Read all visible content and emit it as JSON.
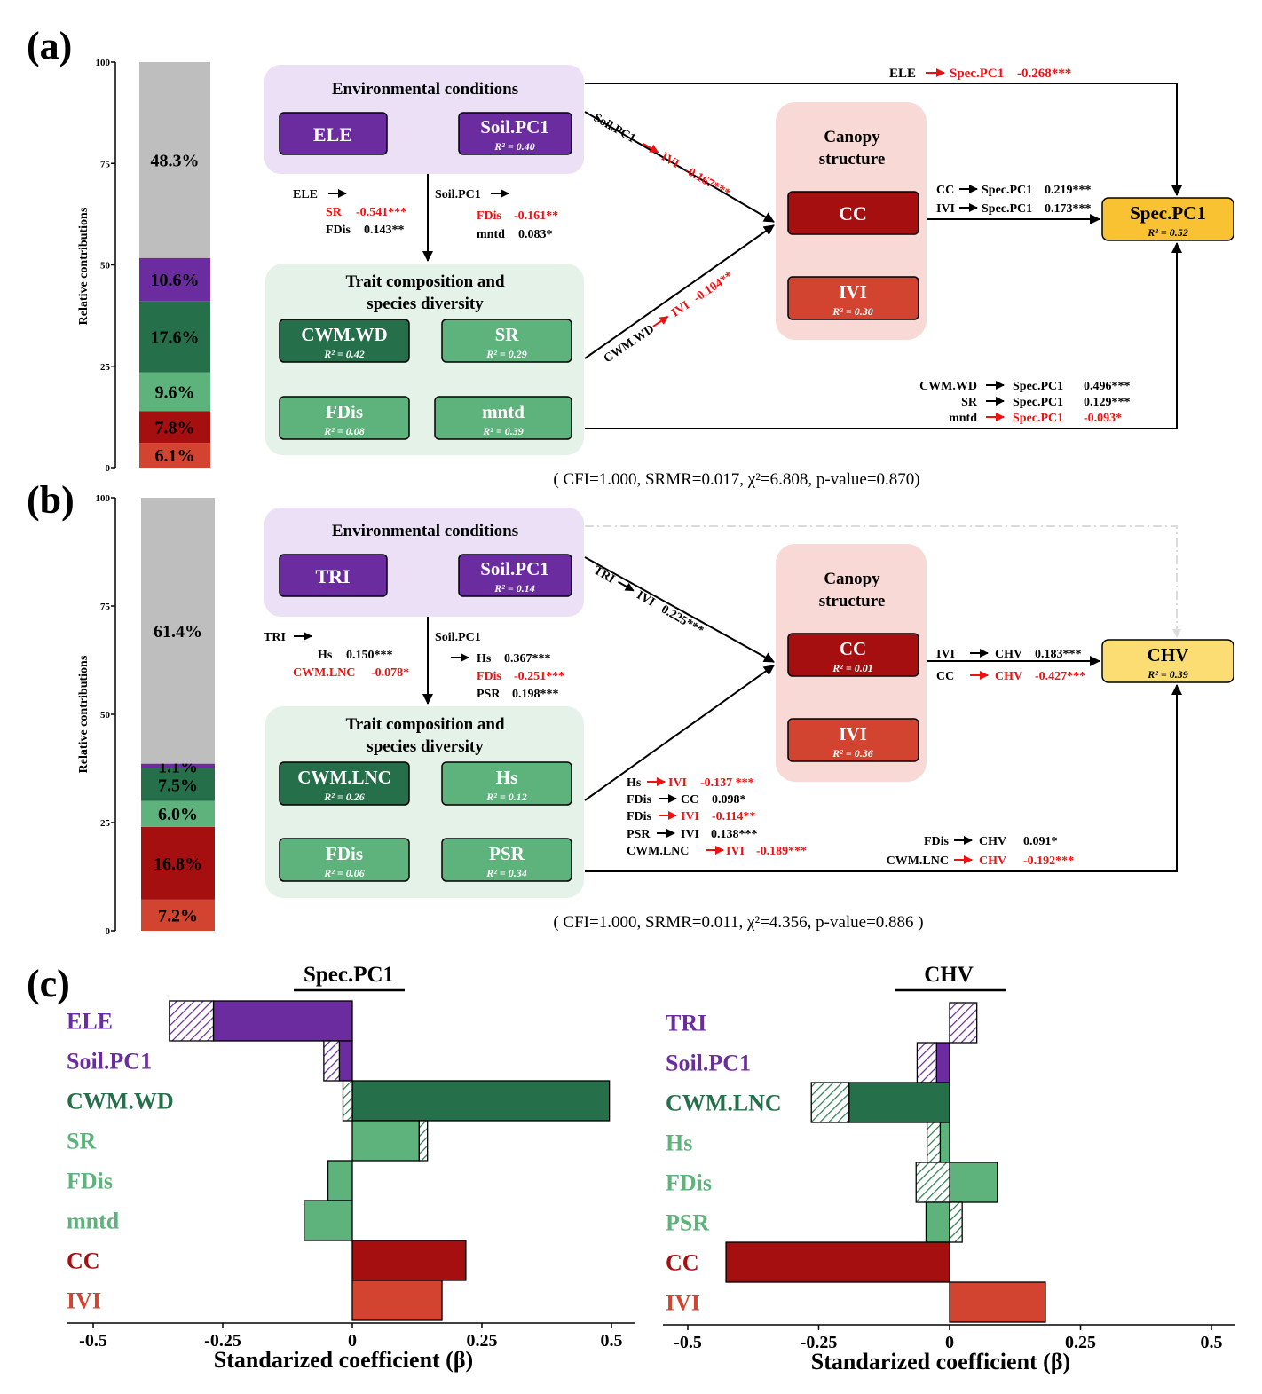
{
  "colors": {
    "env_purple": "#6a2c9e",
    "env_bg": "#ece0f7",
    "trait_dark": "#25704a",
    "trait_light": "#5eb37c",
    "trait_bg": "#e5f2e7",
    "cc_red": "#a50f10",
    "ivi_red": "#d24430",
    "canopy_bg": "#f8d9d6",
    "spec_yellow": "#f8c232",
    "chv_yellow": "#fbdd73",
    "gray": "#bebebe",
    "highlight_red": "#ee1111"
  },
  "panel_a": {
    "label": "(a)",
    "bar": {
      "ylabel": "Relative contributions",
      "ticks": [
        "0",
        "25",
        "50",
        "75",
        "100"
      ],
      "segments": [
        {
          "value": 6.1,
          "label": "6.1%",
          "color": "#d24430"
        },
        {
          "value": 7.8,
          "label": "7.8%",
          "color": "#a50f10"
        },
        {
          "value": 9.6,
          "label": "9.6%",
          "color": "#5eb37c"
        },
        {
          "value": 17.6,
          "label": "17.6%",
          "color": "#25704a"
        },
        {
          "value": 10.6,
          "label": "10.6%",
          "color": "#6a2c9e"
        },
        {
          "value": 48.3,
          "label": "48.3%",
          "color": "#bebebe"
        }
      ]
    },
    "env": {
      "title": "Environmental conditions",
      "ele": "ELE",
      "soil": "Soil.PC1",
      "soil_r2": "R² = 0.40"
    },
    "trait": {
      "title1": "Trait composition and",
      "title2": "species diversity",
      "cwm": "CWM.WD",
      "cwm_r2": "R² = 0.42",
      "sr": "SR",
      "sr_r2": "R² = 0.29",
      "fdis": "FDis",
      "fdis_r2": "R² = 0.08",
      "mntd": "mntd",
      "mntd_r2": "R² = 0.39"
    },
    "canopy": {
      "title1": "Canopy",
      "title2": "structure",
      "cc": "CC",
      "ivi": "IVI",
      "ivi_r2": "R² = 0.30"
    },
    "target": {
      "name": "Spec.PC1",
      "r2": "R² = 0.52"
    },
    "paths": {
      "ele_top_src": "ELE",
      "ele_top_dst": "Spec.PC1",
      "ele_top_val": "-0.268***",
      "soil_ivi": "Soil.PC1",
      "soil_ivi_dst": "IVI",
      "soil_ivi_val": "-0.167***",
      "cwm_ivi": "CWM.WD",
      "cwm_ivi_dst": "IVI",
      "cwm_ivi_val": "-0.104**",
      "ele_mid_src": "ELE",
      "ele_sr": "SR",
      "ele_sr_val": "-0.541***",
      "ele_fdis": "FDis",
      "ele_fdis_val": "0.143**",
      "soil_mid_src": "Soil.PC1",
      "soil_fdis": "FDis",
      "soil_fdis_val": "-0.161**",
      "soil_mntd": "mntd",
      "soil_mntd_val": "0.083*",
      "cc_spec": "CC",
      "cc_spec_dst": "Spec.PC1",
      "cc_spec_val": "0.219***",
      "ivi_spec": "IVI",
      "ivi_spec_dst": "Spec.PC1",
      "ivi_spec_val": "0.173***",
      "cwm_spec": "CWM.WD",
      "cwm_spec_dst": "Spec.PC1",
      "cwm_spec_val": "0.496***",
      "sr_spec": "SR",
      "sr_spec_dst": "Spec.PC1",
      "sr_spec_val": "0.129***",
      "mntd_spec": "mntd",
      "mntd_spec_dst": "Spec.PC1",
      "mntd_spec_val": "-0.093*"
    },
    "fit": "( CFI=1.000, SRMR=0.017, χ²=6.808, p-value=0.870)"
  },
  "panel_b": {
    "label": "(b)",
    "bar": {
      "ylabel": "Relative contributions",
      "ticks": [
        "0",
        "25",
        "50",
        "75",
        "100"
      ],
      "segments": [
        {
          "value": 7.2,
          "label": "7.2%",
          "color": "#d24430"
        },
        {
          "value": 16.8,
          "label": "16.8%",
          "color": "#a50f10"
        },
        {
          "value": 6.0,
          "label": "6.0%",
          "color": "#5eb37c"
        },
        {
          "value": 7.5,
          "label": "7.5%",
          "color": "#25704a"
        },
        {
          "value": 1.1,
          "label": "1.1%",
          "color": "#6a2c9e"
        },
        {
          "value": 61.4,
          "label": "61.4%",
          "color": "#bebebe"
        }
      ]
    },
    "env": {
      "title": "Environmental conditions",
      "tri": "TRI",
      "soil": "Soil.PC1",
      "soil_r2": "R² = 0.14"
    },
    "trait": {
      "title1": "Trait composition and",
      "title2": "species diversity",
      "cwm": "CWM.LNC",
      "cwm_r2": "R² = 0.26",
      "hs": "Hs",
      "hs_r2": "R² = 0.12",
      "fdis": "FDis",
      "fdis_r2": "R² = 0.06",
      "psr": "PSR",
      "psr_r2": "R² = 0.34"
    },
    "canopy": {
      "title1": "Canopy",
      "title2": "structure",
      "cc": "CC",
      "cc_r2": "R² = 0.01",
      "ivi": "IVI",
      "ivi_r2": "R² = 0.36"
    },
    "target": {
      "name": "CHV",
      "r2": "R² = 0.39"
    },
    "paths": {
      "tri_ivi": "TRI",
      "tri_ivi_dst": "IVI",
      "tri_ivi_val": "0.225***",
      "tri_mid_src": "TRI",
      "tri_hs": "Hs",
      "tri_hs_val": "0.150***",
      "tri_cwm": "CWM.LNC",
      "tri_cwm_val": "-0.078*",
      "soil_mid_src": "Soil.PC1",
      "soil_hs": "Hs",
      "soil_hs_val": "0.367***",
      "soil_fdis": "FDis",
      "soil_fdis_val": "-0.251***",
      "soil_psr": "PSR",
      "soil_psr_val": "0.198***",
      "ivi_chv": "IVI",
      "ivi_chv_dst": "CHV",
      "ivi_chv_val": "0.183***",
      "cc_chv": "CC",
      "cc_chv_dst": "CHV",
      "cc_chv_val": "-0.427***",
      "l1_src": "Hs",
      "l1_dst": "IVI",
      "l1_val": "-0.137 ***",
      "l2_src": "FDis",
      "l2_dst": "CC",
      "l2_val": "0.098*",
      "l3_src": "FDis",
      "l3_dst": "IVI",
      "l3_val": "-0.114**",
      "l4_src": "PSR",
      "l4_dst": "IVI",
      "l4_val": "0.138***",
      "l5_src": "CWM.LNC",
      "l5_dst": "IVI",
      "l5_val": "-0.189***",
      "r1_src": "FDis",
      "r1_dst": "CHV",
      "r1_val": "0.091*",
      "r2_src": "CWM.LNC",
      "r2_dst": "CHV",
      "r2_val": "-0.192***"
    },
    "fit": "( CFI=1.000, SRMR=0.011, χ²=4.356, p-value=0.886 )"
  },
  "panel_c": {
    "label": "(c)",
    "xlabel": "Standarized coefficient (β)",
    "ticks": [
      "-0.5",
      "-0.25",
      "0",
      "0.25",
      "0.5"
    ],
    "chart_data": [
      {
        "type": "bar",
        "title": "Spec.PC1",
        "categories": [
          "ELE",
          "Soil.PC1",
          "CWM.WD",
          "SR",
          "FDis",
          "mntd",
          "CC",
          "IVI"
        ],
        "category_colors": [
          "#6a2c9e",
          "#6a2c9e",
          "#25704a",
          "#5eb37c",
          "#5eb37c",
          "#5eb37c",
          "#a50f10",
          "#d24430"
        ],
        "direct": [
          -0.268,
          -0.025,
          0.496,
          0.129,
          -0.047,
          -0.093,
          0.219,
          0.173
        ],
        "indirect": [
          -0.085,
          -0.03,
          -0.018,
          0.016,
          0,
          0,
          0,
          0
        ],
        "xlim": [
          -0.55,
          0.55
        ]
      },
      {
        "type": "bar",
        "title": "CHV",
        "categories": [
          "TRI",
          "Soil.PC1",
          "CWM.LNC",
          "Hs",
          "FDis",
          "PSR",
          "CC",
          "IVI"
        ],
        "category_colors": [
          "#6a2c9e",
          "#6a2c9e",
          "#25704a",
          "#5eb37c",
          "#5eb37c",
          "#5eb37c",
          "#a50f10",
          "#d24430"
        ],
        "direct": [
          0,
          -0.025,
          -0.192,
          -0.018,
          0.091,
          -0.045,
          -0.427,
          0.183
        ],
        "indirect": [
          0.052,
          -0.037,
          -0.072,
          -0.025,
          -0.064,
          0.024,
          0,
          0
        ],
        "xlim": [
          -0.55,
          0.55
        ]
      }
    ]
  }
}
